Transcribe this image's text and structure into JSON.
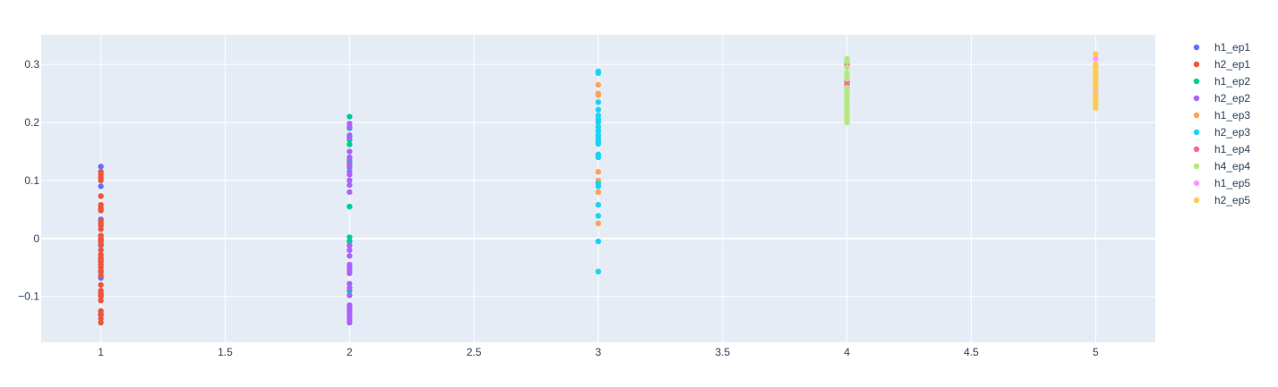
{
  "chart_data": {
    "type": "scatter",
    "title": "",
    "xlabel": "",
    "ylabel": "",
    "xlim": [
      0.76,
      5.24
    ],
    "ylim": [
      -0.179,
      0.351
    ],
    "x_ticks": [
      1,
      1.5,
      2,
      2.5,
      3,
      3.5,
      4,
      4.5,
      5
    ],
    "x_tick_labels": [
      "1",
      "1.5",
      "2",
      "2.5",
      "3",
      "3.5",
      "4",
      "4.5",
      "5"
    ],
    "y_ticks": [
      -0.1,
      0,
      0.1,
      0.2,
      0.3
    ],
    "y_tick_labels": [
      "−0.1",
      "0",
      "0.1",
      "0.2",
      "0.3"
    ],
    "grid": true,
    "legend_position": "right",
    "plot_bgcolor": "#e5ecf6",
    "series": [
      {
        "name": "h1_ep1",
        "color": "#636efa",
        "x": 1,
        "y": [
          0.124,
          0.09,
          0.033,
          0.026,
          -0.002,
          -0.012,
          -0.036,
          -0.058,
          -0.068,
          -0.097,
          -0.132
        ]
      },
      {
        "name": "h2_ep1",
        "color": "#EF553B",
        "x": 1,
        "y": [
          0.115,
          0.11,
          0.105,
          0.1,
          0.073,
          0.058,
          0.052,
          0.048,
          0.03,
          0.022,
          0.016,
          0.005,
          0.0,
          -0.005,
          -0.01,
          -0.02,
          -0.028,
          -0.033,
          -0.04,
          -0.045,
          -0.05,
          -0.056,
          -0.064,
          -0.08,
          -0.09,
          -0.095,
          -0.1,
          -0.107,
          -0.125,
          -0.13,
          -0.138,
          -0.145
        ]
      },
      {
        "name": "h1_ep2",
        "color": "#00cc96",
        "x": 2,
        "y": [
          0.21,
          0.19,
          0.17,
          0.162,
          0.135,
          0.122,
          0.055,
          0.002,
          -0.005,
          -0.09
        ]
      },
      {
        "name": "h2_ep2",
        "color": "#ab63fa",
        "x": 2,
        "y": [
          0.198,
          0.192,
          0.178,
          0.175,
          0.15,
          0.14,
          0.13,
          0.125,
          0.115,
          0.11,
          0.1,
          0.092,
          0.08,
          -0.012,
          -0.02,
          -0.03,
          -0.045,
          -0.05,
          -0.055,
          -0.06,
          -0.078,
          -0.085,
          -0.098,
          -0.115,
          -0.12,
          -0.125,
          -0.13,
          -0.135,
          -0.14,
          -0.145
        ]
      },
      {
        "name": "h1_ep3",
        "color": "#FFA15A",
        "x": 3,
        "y": [
          0.265,
          0.25,
          0.247,
          0.115,
          0.1,
          0.08,
          0.026
        ]
      },
      {
        "name": "h2_ep3",
        "color": "#19d3f3",
        "x": 3,
        "y": [
          0.288,
          0.285,
          0.235,
          0.222,
          0.212,
          0.205,
          0.2,
          0.192,
          0.185,
          0.178,
          0.172,
          0.167,
          0.163,
          0.145,
          0.14,
          0.095,
          0.09,
          0.058,
          0.039,
          -0.005,
          -0.057
        ]
      },
      {
        "name": "h1_ep4",
        "color": "#FF6692",
        "x": 4,
        "y": [
          0.3,
          0.27,
          0.265
        ]
      },
      {
        "name": "h4_ep4",
        "color": "#B6E880",
        "x": 4,
        "y": [
          0.31,
          0.305,
          0.295,
          0.285,
          0.28,
          0.275,
          0.26,
          0.255,
          0.25,
          0.245,
          0.24,
          0.235,
          0.23,
          0.225,
          0.22,
          0.215,
          0.21,
          0.205,
          0.2
        ]
      },
      {
        "name": "h1_ep5",
        "color": "#FF97FF",
        "x": 5,
        "y": [
          0.31,
          0.295,
          0.285,
          0.255
        ]
      },
      {
        "name": "h2_ep5",
        "color": "#FECB52",
        "x": 5,
        "y": [
          0.318,
          0.3,
          0.295,
          0.29,
          0.285,
          0.28,
          0.275,
          0.27,
          0.265,
          0.26,
          0.25,
          0.245,
          0.24,
          0.235,
          0.23,
          0.225
        ]
      }
    ]
  }
}
